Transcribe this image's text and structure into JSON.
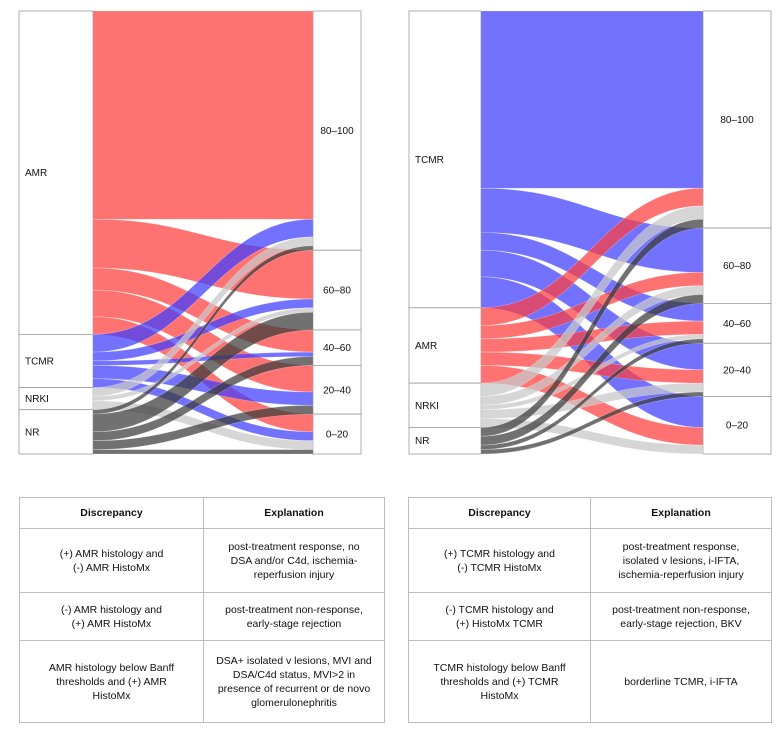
{
  "colors": {
    "AMR": "#ff3b3b",
    "TCMR": "#3b3bff",
    "NRKI": "#c8c8c8",
    "NR": "#3a3a3a"
  },
  "chart_data": [
    {
      "type": "sankey",
      "title": "",
      "left_nodes": [
        {
          "label": "AMR",
          "value": 73
        },
        {
          "label": "TCMR",
          "value": 12
        },
        {
          "label": "NRKI",
          "value": 5
        },
        {
          "label": "NR",
          "value": 10
        }
      ],
      "right_nodes": [
        {
          "label": "80–100",
          "value": 54
        },
        {
          "label": "60–80",
          "value": 18
        },
        {
          "label": "40–60",
          "value": 8
        },
        {
          "label": "20–40",
          "value": 11
        },
        {
          "label": "0–20",
          "value": 9
        }
      ],
      "flows": [
        {
          "from": "AMR",
          "to": "80–100",
          "value": 47
        },
        {
          "from": "AMR",
          "to": "60–80",
          "value": 11
        },
        {
          "from": "AMR",
          "to": "40–60",
          "value": 5
        },
        {
          "from": "AMR",
          "to": "20–40",
          "value": 6
        },
        {
          "from": "AMR",
          "to": "0–20",
          "value": 4
        },
        {
          "from": "TCMR",
          "to": "80–100",
          "value": 4
        },
        {
          "from": "TCMR",
          "to": "60–80",
          "value": 2
        },
        {
          "from": "TCMR",
          "to": "40–60",
          "value": 1
        },
        {
          "from": "TCMR",
          "to": "20–40",
          "value": 3
        },
        {
          "from": "TCMR",
          "to": "0–20",
          "value": 2
        },
        {
          "from": "NRKI",
          "to": "80–100",
          "value": 2
        },
        {
          "from": "NRKI",
          "to": "60–80",
          "value": 1
        },
        {
          "from": "NRKI",
          "to": "0–20",
          "value": 2
        },
        {
          "from": "NR",
          "to": "80–100",
          "value": 1
        },
        {
          "from": "NR",
          "to": "60–80",
          "value": 4
        },
        {
          "from": "NR",
          "to": "40–60",
          "value": 2
        },
        {
          "from": "NR",
          "to": "20–40",
          "value": 2
        },
        {
          "from": "NR",
          "to": "0–20",
          "value": 1
        }
      ]
    },
    {
      "type": "sankey",
      "title": "",
      "left_nodes": [
        {
          "label": "TCMR",
          "value": 67
        },
        {
          "label": "AMR",
          "value": 17
        },
        {
          "label": "NRKI",
          "value": 10
        },
        {
          "label": "NR",
          "value": 6
        }
      ],
      "right_nodes": [
        {
          "label": "80–100",
          "value": 49
        },
        {
          "label": "60–80",
          "value": 17
        },
        {
          "label": "40–60",
          "value": 9
        },
        {
          "label": "20–40",
          "value": 12
        },
        {
          "label": "0–20",
          "value": 13
        }
      ],
      "flows": [
        {
          "from": "TCMR",
          "to": "80–100",
          "value": 40
        },
        {
          "from": "TCMR",
          "to": "60–80",
          "value": 10
        },
        {
          "from": "TCMR",
          "to": "40–60",
          "value": 4
        },
        {
          "from": "TCMR",
          "to": "20–40",
          "value": 6
        },
        {
          "from": "TCMR",
          "to": "0–20",
          "value": 7
        },
        {
          "from": "AMR",
          "to": "80–100",
          "value": 4
        },
        {
          "from": "AMR",
          "to": "60–80",
          "value": 3
        },
        {
          "from": "AMR",
          "to": "40–60",
          "value": 3
        },
        {
          "from": "AMR",
          "to": "20–40",
          "value": 3
        },
        {
          "from": "AMR",
          "to": "0–20",
          "value": 4
        },
        {
          "from": "NRKI",
          "to": "80–100",
          "value": 3
        },
        {
          "from": "NRKI",
          "to": "60–80",
          "value": 2
        },
        {
          "from": "NRKI",
          "to": "40–60",
          "value": 1
        },
        {
          "from": "NRKI",
          "to": "20–40",
          "value": 2
        },
        {
          "from": "NRKI",
          "to": "0–20",
          "value": 2
        },
        {
          "from": "NR",
          "to": "80–100",
          "value": 2
        },
        {
          "from": "NR",
          "to": "60–80",
          "value": 2
        },
        {
          "from": "NR",
          "to": "40–60",
          "value": 1
        },
        {
          "from": "NR",
          "to": "20–40",
          "value": 1
        }
      ]
    }
  ],
  "tables": [
    {
      "headers": [
        "Discrepancy",
        "Explanation"
      ],
      "rows": [
        {
          "discrepancy": [
            "(+) AMR histology and",
            "(-) AMR HistoMx"
          ],
          "explanation": [
            "post-treatment response, no",
            "DSA and/or C4d, ischemia-",
            "reperfusion injury"
          ]
        },
        {
          "discrepancy": [
            "(-) AMR histology and",
            "(+) AMR HistoMx"
          ],
          "explanation": [
            "post-treatment non-response,",
            "early-stage rejection"
          ]
        },
        {
          "discrepancy": [
            "AMR histology below Banff",
            "thresholds and (+) AMR",
            "HistoMx"
          ],
          "explanation": [
            "DSA+ isolated v lesions, MVI and",
            "DSA/C4d status, MVI>2 in",
            "presence of recurrent or de novo",
            "glomerulonephritis"
          ]
        }
      ]
    },
    {
      "headers": [
        "Discrepancy",
        "Explanation"
      ],
      "rows": [
        {
          "discrepancy": [
            "(+) TCMR histology and",
            "(-) TCMR HistoMx"
          ],
          "explanation": [
            "post-treatment response,",
            "isolated v lesions, i-IFTA,",
            "ischemia-reperfusion injury"
          ]
        },
        {
          "discrepancy": [
            "(-) TCMR histology and",
            "(+) HistoMx TCMR"
          ],
          "explanation": [
            "post-treatment non-response,",
            "early-stage rejection, BKV"
          ]
        },
        {
          "discrepancy": [
            "TCMR histology below Banff",
            "thresholds and (+) TCMR",
            "HistoMx"
          ],
          "explanation": [
            "borderline TCMR, i-IFTA"
          ]
        }
      ]
    }
  ]
}
